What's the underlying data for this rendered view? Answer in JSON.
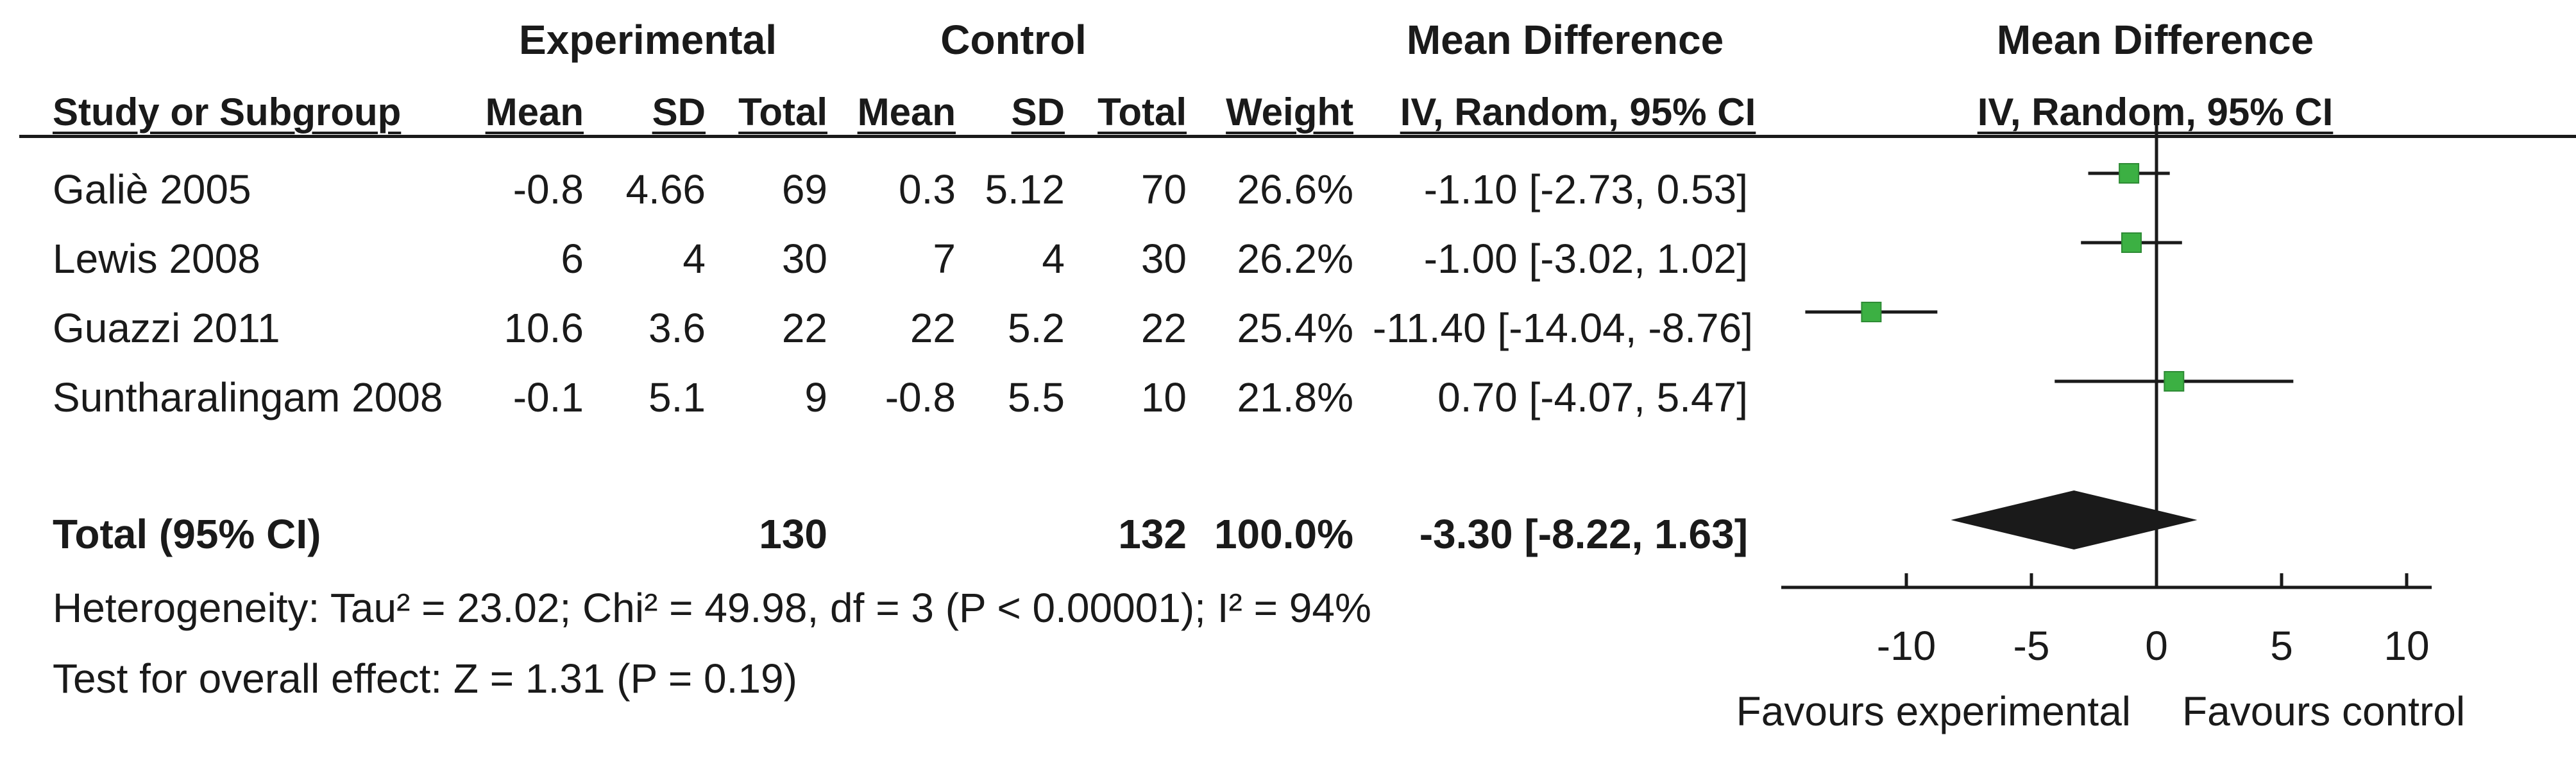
{
  "headers": {
    "experimental": "Experimental",
    "control": "Control",
    "mean_difference": "Mean Difference",
    "mean_difference_plot": "Mean Difference",
    "study": "Study or Subgroup",
    "mean_e": "Mean",
    "sd_e": "SD",
    "total_e": "Total",
    "mean_c": "Mean",
    "sd_c": "SD",
    "total_c": "Total",
    "weight": "Weight",
    "ci": "IV, Random, 95% CI",
    "ci_plot": "IV, Random, 95% CI"
  },
  "studies": [
    {
      "name": "Galiè 2005",
      "mean_e": "-0.8",
      "sd_e": "4.66",
      "total_e": "69",
      "mean_c": "0.3",
      "sd_c": "5.12",
      "total_c": "70",
      "weight": "26.6%",
      "ci": "-1.10 [-2.73, 0.53]"
    },
    {
      "name": "Lewis 2008",
      "mean_e": "6",
      "sd_e": "4",
      "total_e": "30",
      "mean_c": "7",
      "sd_c": "4",
      "total_c": "30",
      "weight": "26.2%",
      "ci": "-1.00 [-3.02, 1.02]"
    },
    {
      "name": "Guazzi 2011",
      "mean_e": "10.6",
      "sd_e": "3.6",
      "total_e": "22",
      "mean_c": "22",
      "sd_c": "5.2",
      "total_c": "22",
      "weight": "25.4%",
      "ci": "-11.40 [-14.04, -8.76]"
    },
    {
      "name": "Suntharalingam 2008",
      "mean_e": "-0.1",
      "sd_e": "5.1",
      "total_e": "9",
      "mean_c": "-0.8",
      "sd_c": "5.5",
      "total_c": "10",
      "weight": "21.8%",
      "ci": "0.70 [-4.07, 5.47]"
    }
  ],
  "total": {
    "label": "Total (95% CI)",
    "total_e": "130",
    "total_c": "132",
    "weight": "100.0%",
    "ci": "-3.30 [-8.22, 1.63]"
  },
  "heterogeneity": "Heterogeneity: Tau² = 23.02; Chi² = 49.98, df = 3 (P < 0.00001); I² = 94%",
  "overall_effect": "Test for overall effect: Z = 1.31 (P = 0.19)",
  "favours_left": "Favours experimental",
  "favours_right": "Favours control",
  "colors": {
    "marker": "#3cb043",
    "line": "#1a1a1a"
  },
  "chart_data": {
    "type": "forest",
    "xlim": [
      -15,
      11
    ],
    "ticks": [
      -10,
      -5,
      0,
      5,
      10
    ],
    "tick_labels": [
      "-10",
      "-5",
      "0",
      "5",
      "10"
    ],
    "studies": [
      {
        "name": "Galiè 2005",
        "md": -1.1,
        "lower": -2.73,
        "upper": 0.53,
        "weight": 26.6
      },
      {
        "name": "Lewis 2008",
        "md": -1.0,
        "lower": -3.02,
        "upper": 1.02,
        "weight": 26.2
      },
      {
        "name": "Guazzi 2011",
        "md": -11.4,
        "lower": -14.04,
        "upper": -8.76,
        "weight": 25.4
      },
      {
        "name": "Suntharalingam 2008",
        "md": 0.7,
        "lower": -4.07,
        "upper": 5.47,
        "weight": 21.8
      }
    ],
    "pooled": {
      "md": -3.3,
      "lower": -8.22,
      "upper": 1.63
    }
  }
}
